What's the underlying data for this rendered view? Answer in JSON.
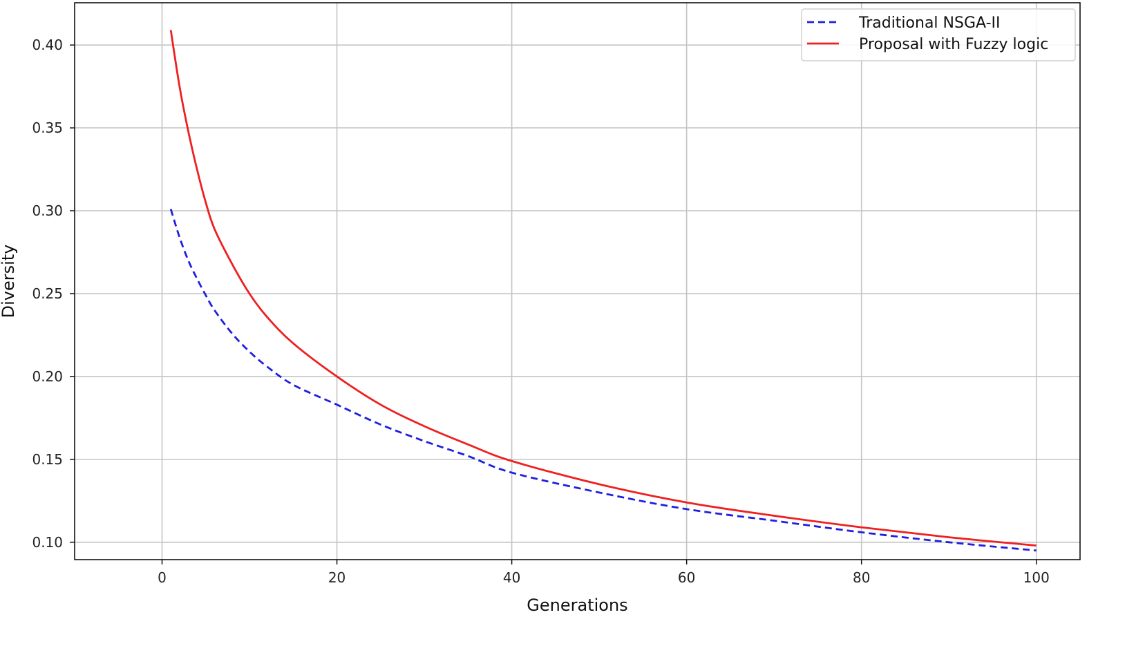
{
  "chart_data": {
    "type": "line",
    "xlabel": "Generations",
    "ylabel": "Diversity",
    "xlim": [
      -10,
      105
    ],
    "ylim": [
      0.0895,
      0.4255
    ],
    "xticks": [
      0,
      20,
      40,
      60,
      80,
      100
    ],
    "yticks": [
      0.1,
      0.15,
      0.2,
      0.25,
      0.3,
      0.35,
      0.4
    ],
    "xtick_labels": [
      "0",
      "20",
      "40",
      "60",
      "80",
      "100"
    ],
    "ytick_labels": [
      "0.10",
      "0.15",
      "0.20",
      "0.25",
      "0.30",
      "0.35",
      "0.40"
    ],
    "grid": true,
    "legend_position": "top-right",
    "x": [
      1,
      2,
      3,
      4,
      5,
      6,
      8,
      10,
      12,
      15,
      20,
      25,
      30,
      35,
      40,
      50,
      60,
      70,
      80,
      90,
      100
    ],
    "series": [
      {
        "name": "Traditional NSGA-II",
        "color": "#1f1fe0",
        "style": "dashed",
        "values": [
          0.301,
          0.284,
          0.27,
          0.259,
          0.249,
          0.24,
          0.226,
          0.215,
          0.206,
          0.195,
          0.183,
          0.171,
          0.161,
          0.152,
          0.142,
          0.13,
          0.12,
          0.113,
          0.106,
          0.1,
          0.095
        ]
      },
      {
        "name": "Proposal with Fuzzy logic",
        "color": "#ee2020",
        "style": "solid",
        "values": [
          0.409,
          0.375,
          0.348,
          0.325,
          0.305,
          0.289,
          0.268,
          0.25,
          0.236,
          0.22,
          0.2,
          0.183,
          0.17,
          0.159,
          0.149,
          0.135,
          0.124,
          0.116,
          0.109,
          0.103,
          0.098
        ]
      }
    ]
  }
}
